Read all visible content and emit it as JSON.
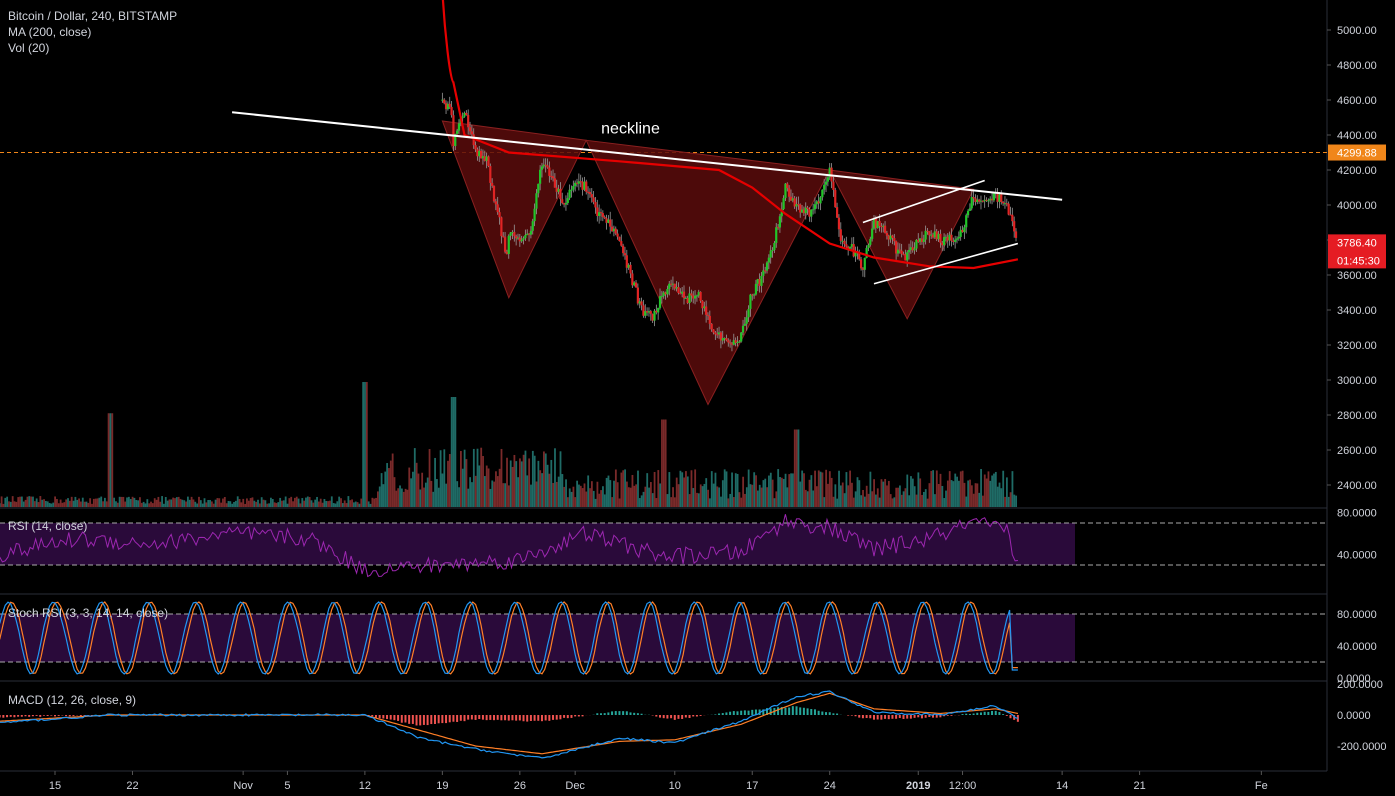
{
  "header": {
    "symbol_line": "Bitcoin / Dollar, 240, BITSTAMP",
    "ma_line": "MA (200, close)",
    "vol_line": "Vol (20)"
  },
  "panes": {
    "rsi_label": "RSI (14, close)",
    "stoch_label": "Stoch RSI (3, 3, 14, 14, close)",
    "macd_label": "MACD (12, 26, close, 9)"
  },
  "colors": {
    "up": "#22c52a",
    "down": "#e02424",
    "ma": "#e60000",
    "rsi": "#9c27b0",
    "band_fill": "#2a0a3a",
    "k_line": "#2196f3",
    "d_line": "#ff7f27",
    "macd_hist_up": "#26a69a",
    "macd_hist_down": "#ef5350",
    "pattern_fill": "#5a0c0c",
    "price_tag": "#f0861a",
    "last_tag": "#e51c23"
  },
  "chart_data": [
    {
      "type": "candlestick",
      "title": "Bitcoin / Dollar, 240, BITSTAMP",
      "y_ticks": [
        2400,
        2600,
        2800,
        3000,
        3200,
        3400,
        3600,
        3800,
        4000,
        4200,
        4400,
        4600,
        4800,
        5000
      ],
      "x_ticks": [
        "15",
        "22",
        "Nov",
        "5",
        "12",
        "19",
        "26",
        "Dec",
        "10",
        "17",
        "24",
        "2019",
        "12:00",
        "14",
        "21",
        "Fe"
      ],
      "price_path": [
        [
          "Nov 19",
          4850
        ],
        [
          "Nov 19",
          4600
        ],
        [
          "Nov 20",
          4500
        ],
        [
          "Nov 20",
          4350
        ],
        [
          "Nov 21",
          4550
        ],
        [
          "Nov 22",
          4300
        ],
        [
          "Nov 23",
          4250
        ],
        [
          "Nov 24",
          3950
        ],
        [
          "Nov 25",
          3650
        ],
        [
          "Nov 25",
          3850
        ],
        [
          "Nov 26",
          3800
        ],
        [
          "Nov 27",
          3850
        ],
        [
          "Nov 28",
          4250
        ],
        [
          "Nov 29",
          4150
        ],
        [
          "Nov 30",
          4000
        ],
        [
          "Dec 1",
          4150
        ],
        [
          "Dec 2",
          4100
        ],
        [
          "Dec 3",
          3950
        ],
        [
          "Dec 4",
          3900
        ],
        [
          "Dec 5",
          3800
        ],
        [
          "Dec 6",
          3600
        ],
        [
          "Dec 7",
          3400
        ],
        [
          "Dec 8",
          3350
        ],
        [
          "Dec 9",
          3500
        ],
        [
          "Dec 10",
          3550
        ],
        [
          "Dec 11",
          3450
        ],
        [
          "Dec 12",
          3500
        ],
        [
          "Dec 13",
          3350
        ],
        [
          "Dec 14",
          3250
        ],
        [
          "Dec 15",
          3200
        ],
        [
          "Dec 16",
          3250
        ],
        [
          "Dec 17",
          3500
        ],
        [
          "Dec 18",
          3600
        ],
        [
          "Dec 19",
          3800
        ],
        [
          "Dec 20",
          4100
        ],
        [
          "Dec 21",
          4000
        ],
        [
          "Dec 22",
          3950
        ],
        [
          "Dec 23",
          4000
        ],
        [
          "Dec 24",
          4200
        ],
        [
          "Dec 25",
          3800
        ],
        [
          "Dec 26",
          3750
        ],
        [
          "Dec 27",
          3650
        ],
        [
          "Dec 28",
          3900
        ],
        [
          "Dec 29",
          3850
        ],
        [
          "Dec 30",
          3750
        ],
        [
          "Dec 31",
          3700
        ],
        [
          "Jan 1",
          3800
        ],
        [
          "Jan 2",
          3850
        ],
        [
          "Jan 3",
          3800
        ],
        [
          "Jan 4",
          3800
        ],
        [
          "Jan 5",
          3850
        ],
        [
          "Jan 6",
          4050
        ],
        [
          "Jan 7",
          4000
        ],
        [
          "Jan 8",
          4050
        ],
        [
          "Jan 9",
          4000
        ],
        [
          "Jan 10",
          3800
        ]
      ],
      "series": [
        {
          "name": "MA (200, close)",
          "points": [
            [
              "Nov 19",
              5000
            ],
            [
              "Nov 20",
              4700
            ],
            [
              "Nov 21",
              4400
            ],
            [
              "Nov 25",
              4300
            ],
            [
              "Dec 5",
              4250
            ],
            [
              "Dec 14",
              4200
            ],
            [
              "Dec 17",
              4100
            ],
            [
              "Dec 20",
              3950
            ],
            [
              "Dec 24",
              3780
            ],
            [
              "Dec 28",
              3700
            ],
            [
              "Jan 2",
              3650
            ],
            [
              "Jan 6",
              3640
            ],
            [
              "Jan 10",
              3690
            ]
          ]
        }
      ],
      "annotations": {
        "neckline_label": "neckline",
        "neckline": [
          [
            "Oct 31",
            4530
          ],
          [
            "Jan 14",
            4030
          ]
        ],
        "channel_upper": [
          [
            "Dec 27",
            3900
          ],
          [
            "Jan 7",
            4140
          ]
        ],
        "channel_lower": [
          [
            "Dec 28",
            3550
          ],
          [
            "Jan 10",
            3780
          ]
        ],
        "pattern": {
          "left_shoulder": [
            [
              "Nov 19",
              4480
            ],
            [
              "Nov 25",
              3470
            ],
            [
              "Dec 2",
              4370
            ]
          ],
          "head": [
            [
              "Dec 2",
              4370
            ],
            [
              "Dec 13",
              2860
            ],
            [
              "Dec 24",
              4200
            ]
          ],
          "right_shoulder": [
            [
              "Dec 24",
              4200
            ],
            [
              "Dec 31",
              3350
            ],
            [
              "Jan 6",
              4090
            ]
          ]
        }
      },
      "horizontal_line": {
        "value": 4299.88,
        "label": "4299.88"
      },
      "last_price": {
        "value": 3786.4,
        "label": "3786.40",
        "countdown": "01:45:30"
      },
      "grid": false
    },
    {
      "type": "bar",
      "title": "Vol (20)",
      "note": "volume histogram at bottom of price pane, relative heights",
      "spikes": [
        [
          "Oct 20",
          0.75
        ],
        [
          "Nov 12",
          1.0
        ],
        [
          "Nov 20",
          0.88
        ],
        [
          "Dec 9",
          0.7
        ],
        [
          "Dec 21",
          0.62
        ]
      ]
    },
    {
      "type": "line",
      "title": "RSI (14, close)",
      "y_ticks": [
        40,
        80
      ],
      "bands": [
        30,
        70
      ],
      "points": [
        [
          "Oct 10",
          40
        ],
        [
          "Oct 17",
          55
        ],
        [
          "Oct 24",
          50
        ],
        [
          "Oct 31",
          60
        ],
        [
          "Nov 7",
          55
        ],
        [
          "Nov 12",
          25
        ],
        [
          "Nov 19",
          30
        ],
        [
          "Nov 26",
          35
        ],
        [
          "Dec 2",
          60
        ],
        [
          "Dec 9",
          38
        ],
        [
          "Dec 16",
          42
        ],
        [
          "Dec 20",
          72
        ],
        [
          "Dec 24",
          65
        ],
        [
          "Dec 28",
          45
        ],
        [
          "Jan 2",
          55
        ],
        [
          "Jan 6",
          70
        ],
        [
          "Jan 9",
          62
        ],
        [
          "Jan 10",
          30
        ]
      ]
    },
    {
      "type": "line",
      "title": "Stoch RSI (3, 3, 14, 14, close)",
      "y_ticks": [
        0,
        40,
        80
      ],
      "bands": [
        20,
        80
      ],
      "series": [
        {
          "name": "K",
          "amplitude": [
            5,
            95
          ]
        },
        {
          "name": "D",
          "amplitude": [
            5,
            95
          ]
        }
      ],
      "last_value": 10
    },
    {
      "type": "line",
      "title": "MACD (12, 26, close, 9)",
      "y_ticks": [
        200,
        0,
        -200
      ],
      "y_tick_labels": [
        "200.0000",
        "0.0000",
        "-200.0000"
      ],
      "series": [
        {
          "name": "MACD",
          "points": [
            [
              "Oct 10",
              -50
            ],
            [
              "Oct 20",
              0
            ],
            [
              "Nov 12",
              0
            ],
            [
              "Nov 17",
              -150
            ],
            [
              "Nov 22",
              -220
            ],
            [
              "Nov 28",
              -280
            ],
            [
              "Dec 5",
              -150
            ],
            [
              "Dec 10",
              -180
            ],
            [
              "Dec 16",
              -40
            ],
            [
              "Dec 21",
              120
            ],
            [
              "Dec 24",
              150
            ],
            [
              "Dec 28",
              20
            ],
            [
              "Jan 3",
              0
            ],
            [
              "Jan 8",
              60
            ],
            [
              "Jan 10",
              -20
            ]
          ]
        },
        {
          "name": "Signal",
          "points": [
            [
              "Oct 10",
              -40
            ],
            [
              "Oct 20",
              0
            ],
            [
              "Nov 12",
              0
            ],
            [
              "Nov 17",
              -100
            ],
            [
              "Nov 22",
              -200
            ],
            [
              "Nov 28",
              -250
            ],
            [
              "Dec 5",
              -170
            ],
            [
              "Dec 10",
              -160
            ],
            [
              "Dec 16",
              -60
            ],
            [
              "Dec 21",
              80
            ],
            [
              "Dec 24",
              140
            ],
            [
              "Dec 28",
              40
            ],
            [
              "Jan 3",
              10
            ],
            [
              "Jan 8",
              40
            ],
            [
              "Jan 10",
              10
            ]
          ]
        }
      ]
    }
  ]
}
